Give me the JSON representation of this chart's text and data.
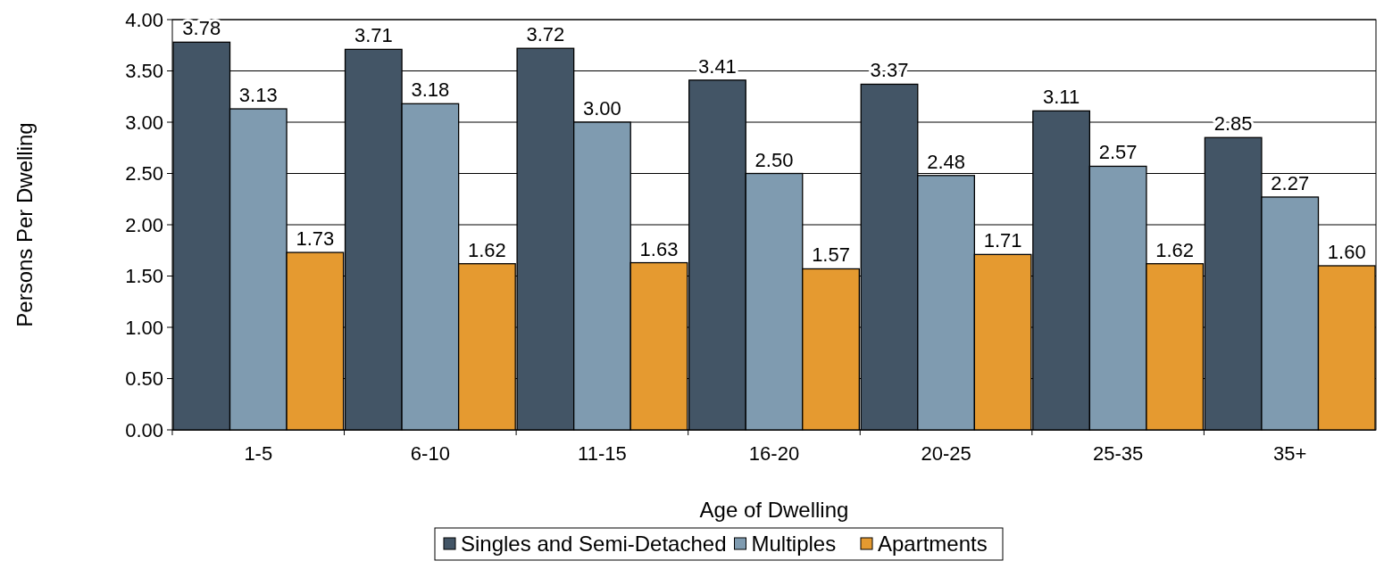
{
  "chart_data": {
    "type": "bar",
    "xlabel": "Age of Dwelling",
    "ylabel": "Persons Per Dwelling",
    "categories": [
      "1-5",
      "6-10",
      "11-15",
      "16-20",
      "20-25",
      "25-35",
      "35+"
    ],
    "series": [
      {
        "name": "Singles and Semi-Detached",
        "color": "#435566",
        "values": [
          3.78,
          3.71,
          3.72,
          3.41,
          3.37,
          3.11,
          2.85
        ],
        "value_labels": [
          "3.78",
          "3.71",
          "3.72",
          "3.41",
          "3.37",
          "3.11",
          "2.85"
        ]
      },
      {
        "name": "Multiples",
        "color": "#7f9bb0",
        "values": [
          3.13,
          3.18,
          3.0,
          2.5,
          2.48,
          2.57,
          2.27
        ],
        "value_labels": [
          "3.13",
          "3.18",
          "3.00",
          "2.50",
          "2.48",
          "2.57",
          "2.27"
        ]
      },
      {
        "name": "Apartments",
        "color": "#e59a30",
        "values": [
          1.73,
          1.62,
          1.63,
          1.57,
          1.71,
          1.62,
          1.6
        ],
        "value_labels": [
          "1.73",
          "1.62",
          "1.63",
          "1.57",
          "1.71",
          "1.62",
          "1.60"
        ]
      }
    ],
    "ylim": [
      0,
      4
    ],
    "yticks": [
      {
        "value": 0,
        "label": "0.00"
      },
      {
        "value": 0.5,
        "label": "0.50"
      },
      {
        "value": 1,
        "label": "1.00"
      },
      {
        "value": 1.5,
        "label": "1.50"
      },
      {
        "value": 2,
        "label": "2.00"
      },
      {
        "value": 2.5,
        "label": "2.50"
      },
      {
        "value": 3,
        "label": "3.00"
      },
      {
        "value": 3.5,
        "label": "3.50"
      },
      {
        "value": 4,
        "label": "4.00"
      }
    ],
    "grid": "y",
    "legend": "bottom"
  }
}
